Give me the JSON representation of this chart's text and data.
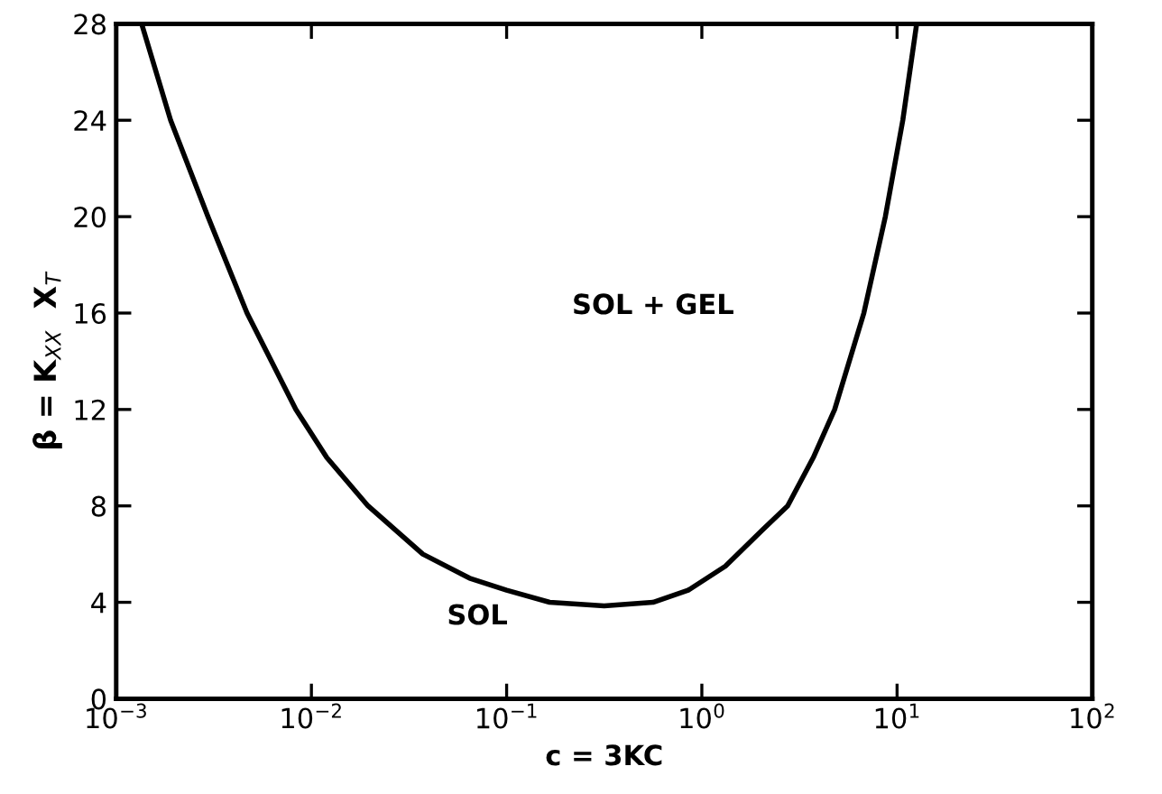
{
  "chart_data": {
    "type": "line",
    "xlabel": "c = 3KC",
    "ylabel": "β = K$_{XX}$  X$_{T}$",
    "log": "x",
    "xlim": [
      0.001,
      100
    ],
    "xticks": [
      {
        "value": 0.001,
        "label": "10$^{−3}$"
      },
      {
        "value": 0.01,
        "label": "10$^{−2}$"
      },
      {
        "value": 0.1,
        "label": "10$^{−1}$"
      },
      {
        "value": 1,
        "label": "10$^{0}$"
      },
      {
        "value": 10,
        "label": "10$^{1}$"
      },
      {
        "value": 100,
        "label": "10$^{2}$"
      }
    ],
    "ylim": [
      0,
      28
    ],
    "yticks": [
      0,
      4,
      8,
      12,
      16,
      20,
      24,
      28
    ],
    "grid": false,
    "legend": false,
    "marker": "none",
    "line_style": "solid",
    "annotations": [
      "SOL + GEL",
      "SOL"
    ],
    "series": [
      {
        "color": "#000000",
        "x": [
          0.00135,
          0.0019,
          0.00295,
          0.00468,
          0.00832,
          0.012,
          0.0195,
          0.0372,
          0.0646,
          0.1,
          0.166,
          0.316,
          0.562,
          0.851,
          1.32,
          2.04,
          2.75,
          3.72,
          4.79,
          6.76,
          8.71,
          10.7,
          12.6
        ],
        "values": [
          28,
          24,
          20,
          16,
          12,
          10,
          8,
          6,
          5,
          4.5,
          4,
          3.85,
          4,
          4.5,
          5.5,
          7,
          8,
          10,
          12,
          16,
          20,
          24,
          28
        ]
      }
    ]
  }
}
